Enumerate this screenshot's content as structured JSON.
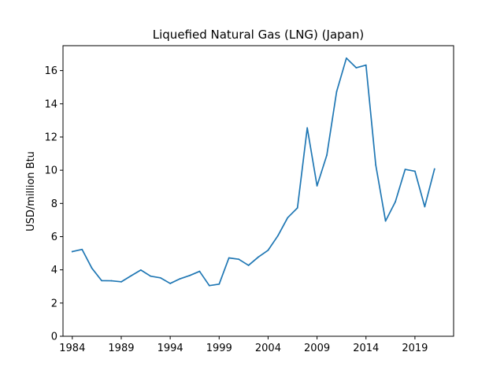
{
  "chart_data": {
    "type": "line",
    "title": "Liquefied Natural Gas (LNG) (Japan)",
    "xlabel": "",
    "ylabel": "USD/million Btu",
    "xlim": [
      1983.05,
      2022.95
    ],
    "ylim": [
      0,
      17.5
    ],
    "x_ticks": [
      1984,
      1989,
      1994,
      1999,
      2004,
      2009,
      2014,
      2019
    ],
    "y_ticks": [
      0,
      2,
      4,
      6,
      8,
      10,
      12,
      14,
      16
    ],
    "grid": false,
    "legend": "none",
    "line_color": "#1f77b4",
    "series": [
      {
        "x": [
          1984,
          1985,
          1986,
          1987,
          1988,
          1989,
          1990,
          1991,
          1992,
          1993,
          1994,
          1995,
          1996,
          1997,
          1998,
          1999,
          2000,
          2001,
          2002,
          2003,
          2004,
          2005,
          2006,
          2007,
          2008,
          2009,
          2010,
          2011,
          2012,
          2013,
          2014,
          2015,
          2016,
          2017,
          2018,
          2019,
          2020,
          2021
        ],
        "values": [
          5.1,
          5.23,
          4.1,
          3.35,
          3.34,
          3.28,
          3.64,
          3.99,
          3.62,
          3.52,
          3.18,
          3.46,
          3.66,
          3.91,
          3.05,
          3.14,
          4.72,
          4.64,
          4.27,
          4.77,
          5.18,
          6.05,
          7.14,
          7.73,
          12.55,
          9.06,
          10.91,
          14.73,
          16.75,
          16.17,
          16.33,
          10.31,
          6.94,
          8.1,
          10.05,
          9.94,
          7.8,
          10.07
        ]
      }
    ]
  }
}
